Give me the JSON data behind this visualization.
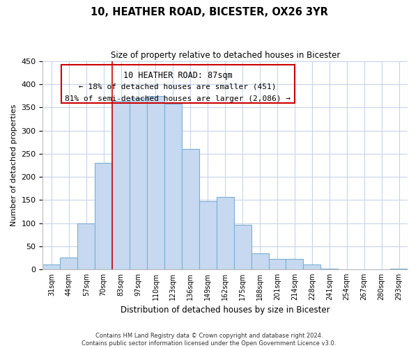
{
  "title": "10, HEATHER ROAD, BICESTER, OX26 3YR",
  "subtitle": "Size of property relative to detached houses in Bicester",
  "xlabel": "Distribution of detached houses by size in Bicester",
  "ylabel": "Number of detached properties",
  "footer_line1": "Contains HM Land Registry data © Crown copyright and database right 2024.",
  "footer_line2": "Contains public sector information licensed under the Open Government Licence v3.0.",
  "bar_labels": [
    "31sqm",
    "44sqm",
    "57sqm",
    "70sqm",
    "83sqm",
    "97sqm",
    "110sqm",
    "123sqm",
    "136sqm",
    "149sqm",
    "162sqm",
    "175sqm",
    "188sqm",
    "201sqm",
    "214sqm",
    "228sqm",
    "241sqm",
    "254sqm",
    "267sqm",
    "280sqm",
    "293sqm"
  ],
  "bar_values": [
    10,
    25,
    100,
    230,
    365,
    370,
    375,
    358,
    260,
    148,
    156,
    96,
    34,
    22,
    22,
    11,
    2,
    0,
    0,
    0,
    2
  ],
  "bar_color": "#c6d9f0",
  "bar_edge_color": "#7bafd4",
  "annotation_line1": "10 HEATHER ROAD: 87sqm",
  "annotation_line2": "← 18% of detached houses are smaller (451)",
  "annotation_line3": "81% of semi-detached houses are larger (2,086) →",
  "vline_bar_index": 4,
  "ylim": [
    0,
    450
  ],
  "yticks": [
    0,
    50,
    100,
    150,
    200,
    250,
    300,
    350,
    400,
    450
  ],
  "bg_color": "#ffffff",
  "grid_color": "#c8d4e8",
  "annotation_box_edge": "#cc0000",
  "vline_color": "#cc0000"
}
